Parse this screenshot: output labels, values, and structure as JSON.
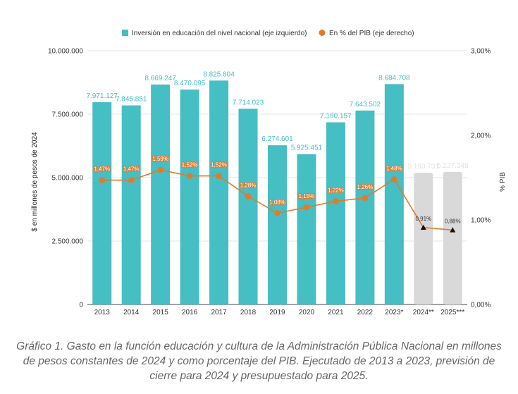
{
  "chart_data": {
    "type": "bar",
    "categories": [
      "2013",
      "2014",
      "2015",
      "2016",
      "2017",
      "2018",
      "2019",
      "2020",
      "2021",
      "2022",
      "2023*",
      "2024**",
      "2025***"
    ],
    "series": [
      {
        "name": "Inversión en educación del nivel nacional (eje izquierdo)",
        "axis": "left",
        "values": [
          7971127,
          7845851,
          8669247,
          8470095,
          8825804,
          7714023,
          6274601,
          5925451,
          7180157,
          7643502,
          8684708,
          5193731,
          5227248
        ],
        "labels": [
          "7.971.127",
          "7.845.851",
          "8.669.247",
          "8.470.095",
          "8.825.804",
          "7.714.023",
          "6.274.601",
          "5.925.451",
          "7.180.157",
          "7.643.502",
          "8.684.708",
          "5.193.731",
          "5.227.248"
        ],
        "color": "#45bec4",
        "projected_color": "#d9d9d9"
      },
      {
        "name": "En % del PIB (eje derecho)",
        "type": "line",
        "axis": "right",
        "values": [
          1.47,
          1.47,
          1.59,
          1.52,
          1.52,
          1.28,
          1.08,
          1.15,
          1.22,
          1.26,
          1.48,
          0.91,
          0.88
        ],
        "labels": [
          "1,47%",
          "1,47%",
          "1,59%",
          "1,52%",
          "1,52%",
          "1,28%",
          "1,08%",
          "1,15%",
          "1,22%",
          "1,26%",
          "1,48%",
          "0,91%",
          "0,88%"
        ],
        "color": "#e07b2c",
        "projected_marker_color": "#111111"
      }
    ],
    "projected_from_index": 11,
    "ylabel": "$ en millones de pesos de 2024",
    "y2label": "% PIB",
    "ylim": [
      0,
      10000000
    ],
    "y2lim": [
      0,
      3
    ],
    "y_ticks": [
      "0",
      "2.500.000",
      "5.000.000",
      "7.500.000",
      "10.000.000"
    ],
    "y2_ticks": [
      "0,00%",
      "1,00%",
      "2,00%",
      "3,00%"
    ],
    "grid": true,
    "legend_position": "top"
  },
  "caption": "Gráfico 1. Gasto en la función educación y cultura de la Administración Pública Nacional en millones de pesos constantes de 2024 y como porcentaje del PIB. Ejecutado de 2013 a 2023, previsión de cierre para 2024 y presupuestado para 2025."
}
